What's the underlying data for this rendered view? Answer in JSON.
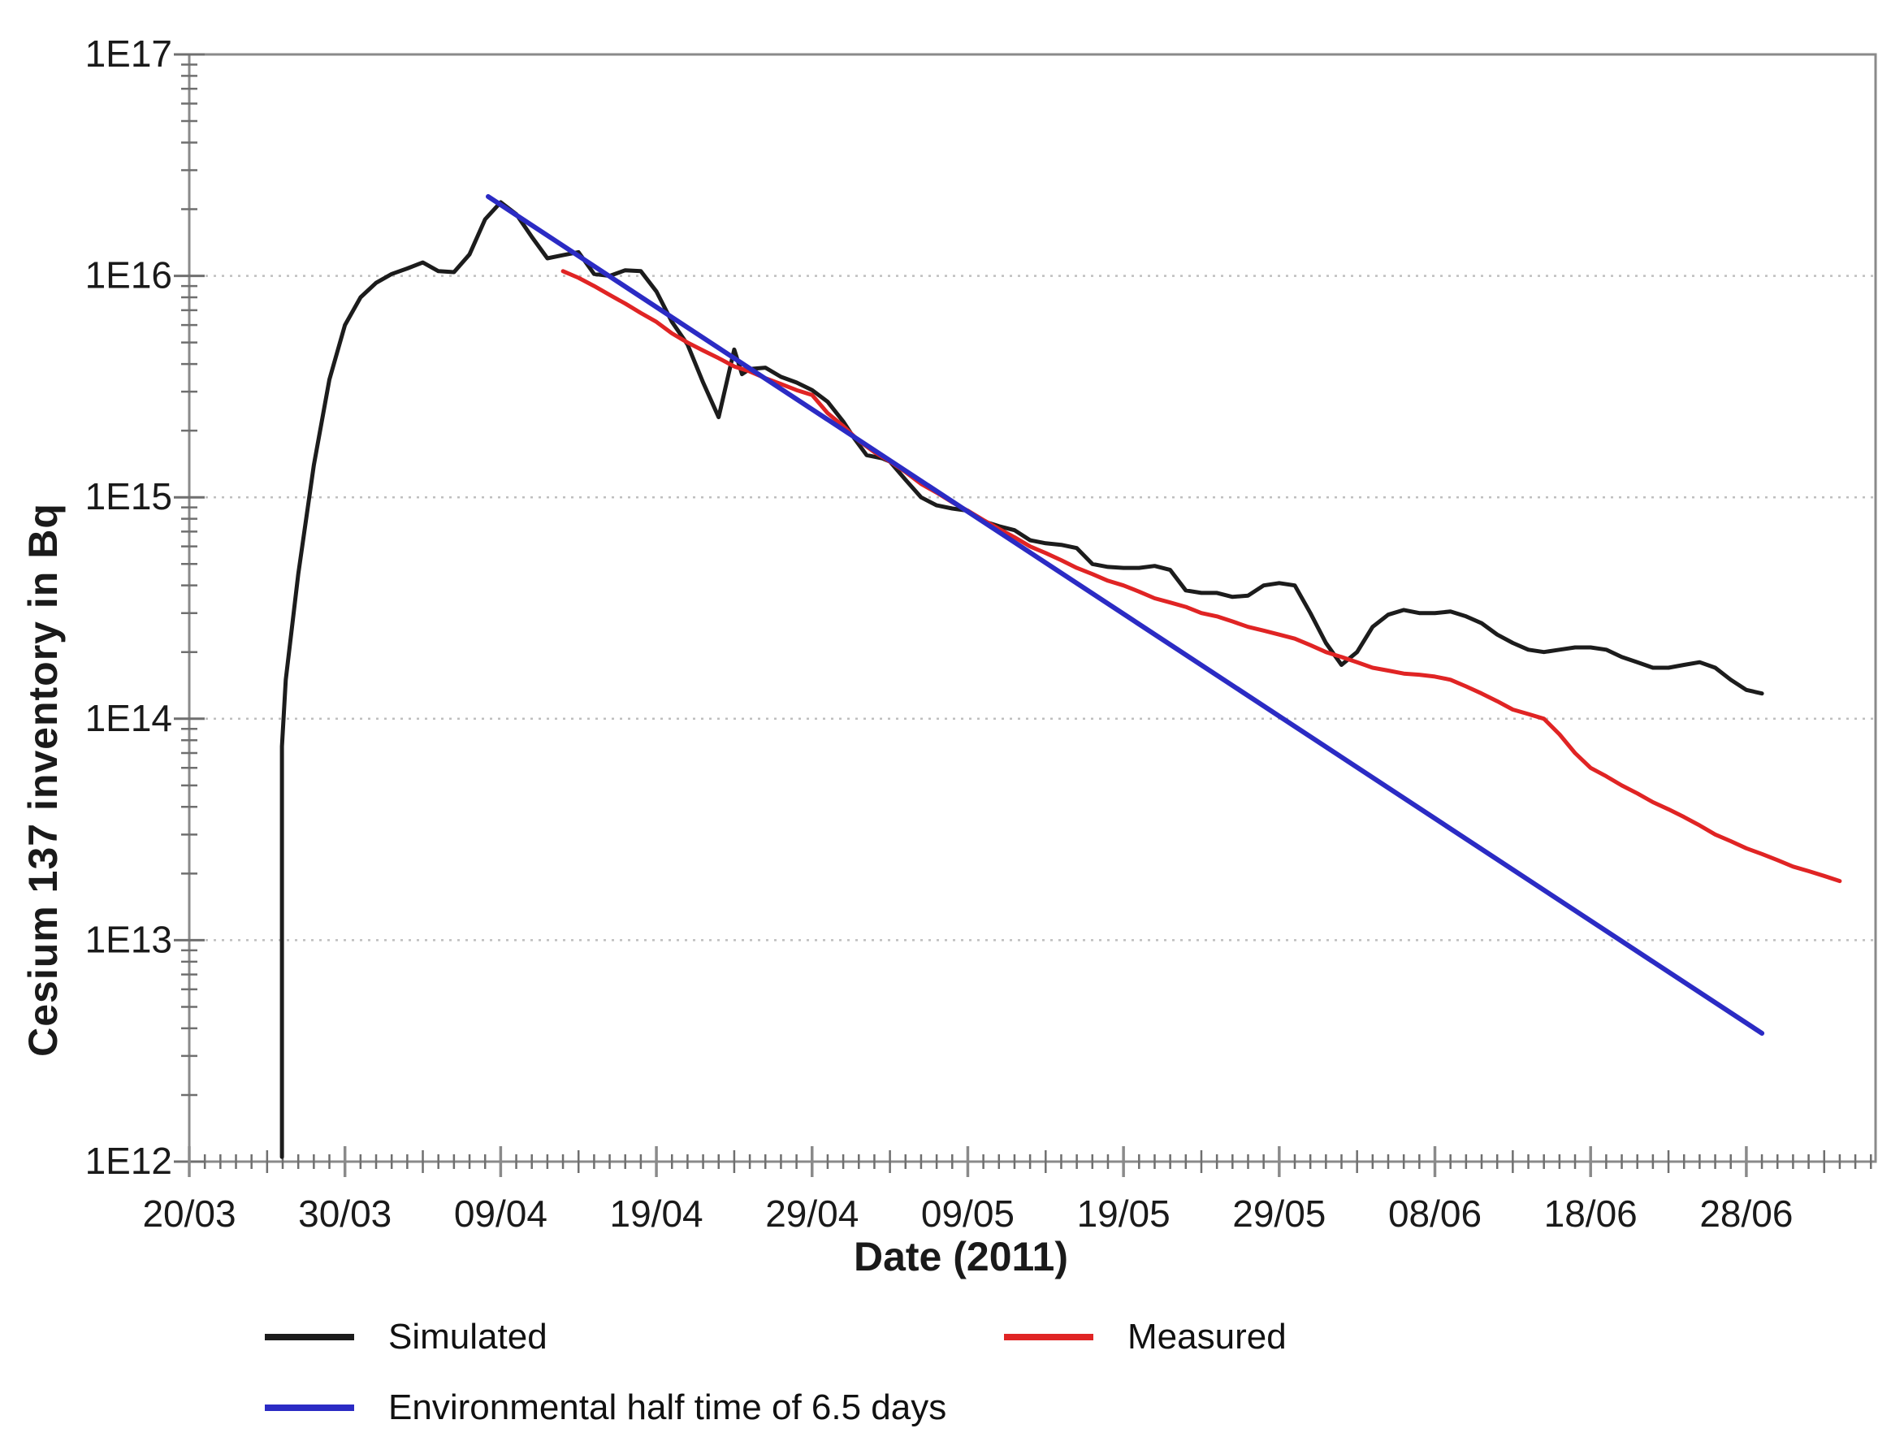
{
  "page": {
    "background": "#ffffff"
  },
  "chart_data": {
    "type": "line",
    "title": "",
    "xlabel": "Date (2011)",
    "ylabel": "Cesium 137 inventory in Bq",
    "x_axis": {
      "unit": "date dd/mm, year 2011",
      "major_tick_labels": [
        "20/03",
        "30/03",
        "09/04",
        "19/04",
        "29/04",
        "09/05",
        "19/05",
        "29/05",
        "08/06",
        "18/06",
        "28/06"
      ],
      "major_tick_days": [
        0,
        10,
        20,
        30,
        40,
        50,
        60,
        70,
        80,
        90,
        100
      ],
      "minor_tick_every_days": 1,
      "medium_tick_every_days": 5,
      "axis_start_day": 0,
      "axis_end_day": 108.3
    },
    "y_axis": {
      "scale": "log10",
      "min": 1000000000000.0,
      "max": 1e+17,
      "tick_labels": [
        "1E17",
        "1E16",
        "1E15",
        "1E14",
        "1E13",
        "1E12"
      ],
      "tick_exponents": [
        17,
        16,
        15,
        14,
        13,
        12
      ],
      "minor_tick_multiples": [
        2,
        3,
        4,
        5,
        6,
        7,
        8,
        9
      ],
      "gridline_decades": [
        16,
        15,
        14,
        13
      ],
      "grid_style": "dotted"
    },
    "series": [
      {
        "name": "Simulated",
        "color": "#1c1c1c",
        "width": 5,
        "points": [
          [
            5.95,
            1050000000000.0
          ],
          [
            5.95,
            75000000000000.0
          ],
          [
            6.2,
            150000000000000.0
          ],
          [
            7,
            450000000000000.0
          ],
          [
            8,
            1400000000000000.0
          ],
          [
            9,
            3400000000000000.0
          ],
          [
            10,
            6000000000000000.0
          ],
          [
            11,
            8000000000000000.0
          ],
          [
            12,
            9300000000000000.0
          ],
          [
            13,
            1.02e+16
          ],
          [
            14,
            1.08e+16
          ],
          [
            15,
            1.15e+16
          ],
          [
            16,
            1.05e+16
          ],
          [
            17,
            1.04e+16
          ],
          [
            18,
            1.25e+16
          ],
          [
            19,
            1.8e+16
          ],
          [
            20,
            2.15e+16
          ],
          [
            21,
            1.9e+16
          ],
          [
            22,
            1.5e+16
          ],
          [
            23,
            1.2e+16
          ],
          [
            24,
            1.24e+16
          ],
          [
            25,
            1.28e+16
          ],
          [
            26,
            1.02e+16
          ],
          [
            27,
            1e+16
          ],
          [
            28,
            1.06e+16
          ],
          [
            29,
            1.05e+16
          ],
          [
            30,
            8500000000000000.0
          ],
          [
            31,
            6200000000000000.0
          ],
          [
            32,
            4900000000000000.0
          ],
          [
            33,
            3300000000000000.0
          ],
          [
            34,
            2300000000000000.0
          ],
          [
            35,
            4650000000000000.0
          ],
          [
            35.5,
            3600000000000000.0
          ],
          [
            36,
            3800000000000000.0
          ],
          [
            37,
            3850000000000000.0
          ],
          [
            38,
            3500000000000000.0
          ],
          [
            39,
            3300000000000000.0
          ],
          [
            40,
            3050000000000000.0
          ],
          [
            41,
            2700000000000000.0
          ],
          [
            42,
            2200000000000000.0
          ],
          [
            42.7,
            1850000000000000.0
          ],
          [
            43.5,
            1550000000000000.0
          ],
          [
            44.5,
            1500000000000000.0
          ],
          [
            45,
            1450000000000000.0
          ],
          [
            46,
            1200000000000000.0
          ],
          [
            47,
            1000000000000000.0
          ],
          [
            48,
            920000000000000.0
          ],
          [
            49,
            890000000000000.0
          ],
          [
            50,
            870000000000000.0
          ],
          [
            51,
            780000000000000.0
          ],
          [
            52,
            740000000000000.0
          ],
          [
            53,
            710000000000000.0
          ],
          [
            54,
            640000000000000.0
          ],
          [
            55,
            620000000000000.0
          ],
          [
            56,
            610000000000000.0
          ],
          [
            57,
            590000000000000.0
          ],
          [
            58,
            500000000000000.0
          ],
          [
            59,
            485000000000000.0
          ],
          [
            60,
            480000000000000.0
          ],
          [
            61,
            480000000000000.0
          ],
          [
            62,
            490000000000000.0
          ],
          [
            63,
            470000000000000.0
          ],
          [
            64,
            380000000000000.0
          ],
          [
            65,
            370000000000000.0
          ],
          [
            66,
            370000000000000.0
          ],
          [
            67,
            355000000000000.0
          ],
          [
            68,
            360000000000000.0
          ],
          [
            69,
            400000000000000.0
          ],
          [
            70,
            410000000000000.0
          ],
          [
            71,
            400000000000000.0
          ],
          [
            72,
            300000000000000.0
          ],
          [
            73,
            220000000000000.0
          ],
          [
            74,
            175000000000000.0
          ],
          [
            75,
            200000000000000.0
          ],
          [
            76,
            260000000000000.0
          ],
          [
            77,
            295000000000000.0
          ],
          [
            78,
            310000000000000.0
          ],
          [
            79,
            300000000000000.0
          ],
          [
            80,
            300000000000000.0
          ],
          [
            81,
            305000000000000.0
          ],
          [
            82,
            290000000000000.0
          ],
          [
            83,
            270000000000000.0
          ],
          [
            84,
            240000000000000.0
          ],
          [
            85,
            220000000000000.0
          ],
          [
            86,
            205000000000000.0
          ],
          [
            87,
            200000000000000.0
          ],
          [
            88,
            205000000000000.0
          ],
          [
            89,
            210000000000000.0
          ],
          [
            90,
            210000000000000.0
          ],
          [
            91,
            205000000000000.0
          ],
          [
            92,
            190000000000000.0
          ],
          [
            93,
            180000000000000.0
          ],
          [
            94,
            170000000000000.0
          ],
          [
            95,
            170000000000000.0
          ],
          [
            96,
            175000000000000.0
          ],
          [
            97,
            180000000000000.0
          ],
          [
            98,
            170000000000000.0
          ],
          [
            99,
            150000000000000.0
          ],
          [
            100,
            135000000000000.0
          ],
          [
            101,
            130000000000000.0
          ]
        ]
      },
      {
        "name": "Measured",
        "color": "#e02424",
        "width": 5,
        "points": [
          [
            24,
            1.05e+16
          ],
          [
            25,
            9800000000000000.0
          ],
          [
            26,
            9000000000000000.0
          ],
          [
            27,
            8200000000000000.0
          ],
          [
            28,
            7500000000000000.0
          ],
          [
            29,
            6800000000000000.0
          ],
          [
            30,
            6200000000000000.0
          ],
          [
            31,
            5500000000000000.0
          ],
          [
            32,
            5000000000000000.0
          ],
          [
            33,
            4600000000000000.0
          ],
          [
            34,
            4250000000000000.0
          ],
          [
            35,
            3900000000000000.0
          ],
          [
            36,
            3700000000000000.0
          ],
          [
            37,
            3450000000000000.0
          ],
          [
            38,
            3250000000000000.0
          ],
          [
            39,
            3050000000000000.0
          ],
          [
            40,
            2900000000000000.0
          ],
          [
            41,
            2400000000000000.0
          ],
          [
            42,
            2100000000000000.0
          ],
          [
            43,
            1800000000000000.0
          ],
          [
            44,
            1600000000000000.0
          ],
          [
            45,
            1450000000000000.0
          ],
          [
            46,
            1300000000000000.0
          ],
          [
            47,
            1150000000000000.0
          ],
          [
            48,
            1050000000000000.0
          ],
          [
            49,
            950000000000000.0
          ],
          [
            50,
            870000000000000.0
          ],
          [
            51,
            790000000000000.0
          ],
          [
            52,
            720000000000000.0
          ],
          [
            53,
            660000000000000.0
          ],
          [
            54,
            600000000000000.0
          ],
          [
            55,
            560000000000000.0
          ],
          [
            56,
            520000000000000.0
          ],
          [
            57,
            480000000000000.0
          ],
          [
            58,
            450000000000000.0
          ],
          [
            59,
            420000000000000.0
          ],
          [
            60,
            400000000000000.0
          ],
          [
            61,
            375000000000000.0
          ],
          [
            62,
            350000000000000.0
          ],
          [
            63,
            335000000000000.0
          ],
          [
            64,
            320000000000000.0
          ],
          [
            65,
            300000000000000.0
          ],
          [
            66,
            290000000000000.0
          ],
          [
            67,
            275000000000000.0
          ],
          [
            68,
            260000000000000.0
          ],
          [
            69,
            250000000000000.0
          ],
          [
            70,
            240000000000000.0
          ],
          [
            71,
            230000000000000.0
          ],
          [
            72,
            215000000000000.0
          ],
          [
            73,
            200000000000000.0
          ],
          [
            74,
            190000000000000.0
          ],
          [
            75,
            180000000000000.0
          ],
          [
            76,
            170000000000000.0
          ],
          [
            77,
            165000000000000.0
          ],
          [
            78,
            160000000000000.0
          ],
          [
            79,
            158000000000000.0
          ],
          [
            80,
            155000000000000.0
          ],
          [
            81,
            150000000000000.0
          ],
          [
            82,
            140000000000000.0
          ],
          [
            83,
            130000000000000.0
          ],
          [
            84,
            120000000000000.0
          ],
          [
            85,
            110000000000000.0
          ],
          [
            86,
            105000000000000.0
          ],
          [
            87,
            100000000000000.0
          ],
          [
            88,
            85000000000000.0
          ],
          [
            89,
            70000000000000.0
          ],
          [
            90,
            60000000000000.0
          ],
          [
            91,
            55000000000000.0
          ],
          [
            92,
            50000000000000.0
          ],
          [
            93,
            46000000000000.0
          ],
          [
            94,
            42000000000000.0
          ],
          [
            95,
            39000000000000.0
          ],
          [
            96,
            36000000000000.0
          ],
          [
            97,
            33000000000000.0
          ],
          [
            98,
            30000000000000.0
          ],
          [
            99,
            28000000000000.0
          ],
          [
            100,
            26000000000000.0
          ],
          [
            101,
            24500000000000.0
          ],
          [
            102,
            23000000000000.0
          ],
          [
            103,
            21500000000000.0
          ],
          [
            104,
            20500000000000.0
          ],
          [
            105,
            19500000000000.0
          ],
          [
            106,
            18500000000000.0
          ]
        ]
      },
      {
        "name": "Environmental half time of 6.5 days",
        "color": "#2b2bc4",
        "width": 6,
        "points": [
          [
            19.2,
            2.28e+16
          ],
          [
            101,
            3800000000000.0
          ]
        ]
      }
    ],
    "legend": {
      "position": "below-axis",
      "rows": [
        [
          "Simulated",
          "Measured"
        ],
        [
          "Environmental half time of 6.5 days"
        ]
      ]
    }
  },
  "colors": {
    "axis": "#8a8a8a",
    "tick": "#6f6f6f",
    "gridline": "#bfbfbf",
    "text": "#1a1a1a"
  }
}
